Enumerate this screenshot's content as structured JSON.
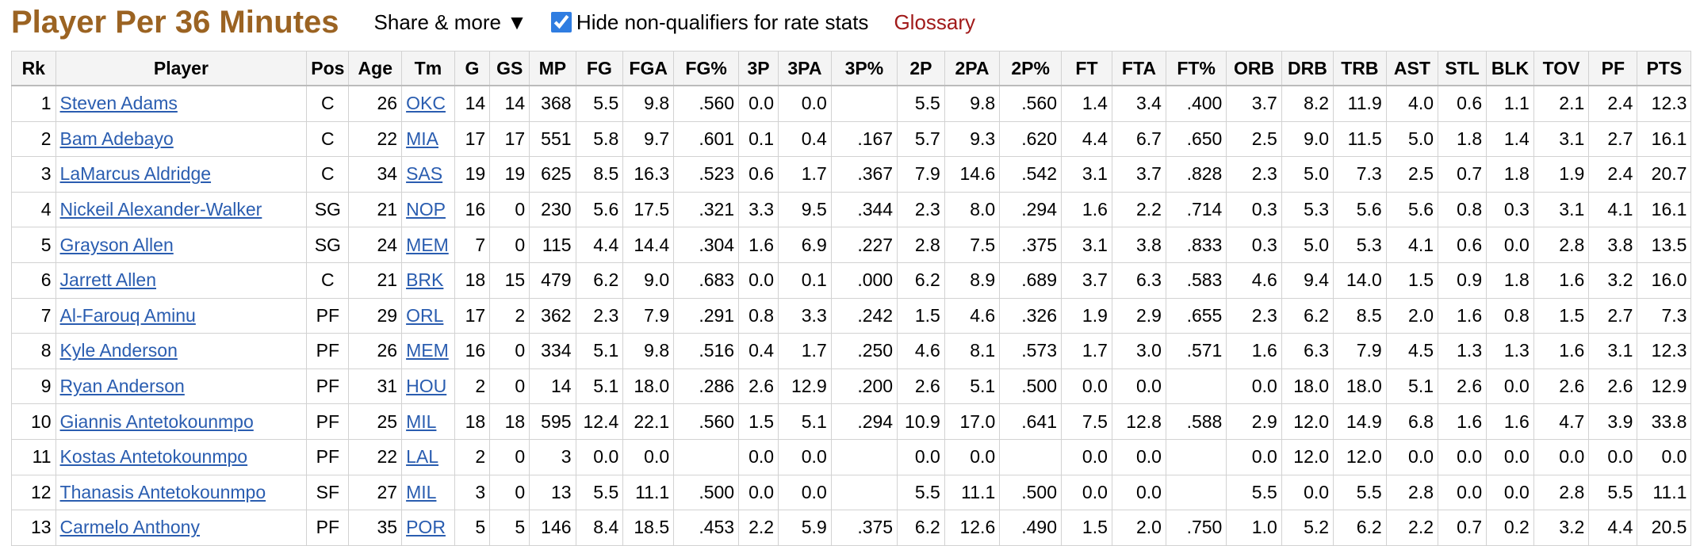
{
  "header": {
    "title": "Player Per 36 Minutes",
    "share": "Share & more ▼",
    "checkbox_label": "Hide non-qualifiers for rate stats",
    "glossary": "Glossary"
  },
  "table": {
    "headers": [
      "Rk",
      "Player",
      "Pos",
      "Age",
      "Tm",
      "G",
      "GS",
      "MP",
      "FG",
      "FGA",
      "FG%",
      "3P",
      "3PA",
      "3P%",
      "2P",
      "2PA",
      "2P%",
      "FT",
      "FTA",
      "FT%",
      "ORB",
      "DRB",
      "TRB",
      "AST",
      "STL",
      "BLK",
      "TOV",
      "PF",
      "PTS"
    ],
    "rows": [
      [
        "1",
        "Steven Adams",
        "C",
        "26",
        "OKC",
        "14",
        "14",
        "368",
        "5.5",
        "9.8",
        ".560",
        "0.0",
        "0.0",
        null,
        "5.5",
        "9.8",
        ".560",
        "1.4",
        "3.4",
        ".400",
        "3.7",
        "8.2",
        "11.9",
        "4.0",
        "0.6",
        "1.1",
        "2.1",
        "2.4",
        "12.3"
      ],
      [
        "2",
        "Bam Adebayo",
        "C",
        "22",
        "MIA",
        "17",
        "17",
        "551",
        "5.8",
        "9.7",
        ".601",
        "0.1",
        "0.4",
        ".167",
        "5.7",
        "9.3",
        ".620",
        "4.4",
        "6.7",
        ".650",
        "2.5",
        "9.0",
        "11.5",
        "5.0",
        "1.8",
        "1.4",
        "3.1",
        "2.7",
        "16.1"
      ],
      [
        "3",
        "LaMarcus Aldridge",
        "C",
        "34",
        "SAS",
        "19",
        "19",
        "625",
        "8.5",
        "16.3",
        ".523",
        "0.6",
        "1.7",
        ".367",
        "7.9",
        "14.6",
        ".542",
        "3.1",
        "3.7",
        ".828",
        "2.3",
        "5.0",
        "7.3",
        "2.5",
        "0.7",
        "1.8",
        "1.9",
        "2.4",
        "20.7"
      ],
      [
        "4",
        "Nickeil Alexander-Walker",
        "SG",
        "21",
        "NOP",
        "16",
        "0",
        "230",
        "5.6",
        "17.5",
        ".321",
        "3.3",
        "9.5",
        ".344",
        "2.3",
        "8.0",
        ".294",
        "1.6",
        "2.2",
        ".714",
        "0.3",
        "5.3",
        "5.6",
        "5.6",
        "0.8",
        "0.3",
        "3.1",
        "4.1",
        "16.1"
      ],
      [
        "5",
        "Grayson Allen",
        "SG",
        "24",
        "MEM",
        "7",
        "0",
        "115",
        "4.4",
        "14.4",
        ".304",
        "1.6",
        "6.9",
        ".227",
        "2.8",
        "7.5",
        ".375",
        "3.1",
        "3.8",
        ".833",
        "0.3",
        "5.0",
        "5.3",
        "4.1",
        "0.6",
        "0.0",
        "2.8",
        "3.8",
        "13.5"
      ],
      [
        "6",
        "Jarrett Allen",
        "C",
        "21",
        "BRK",
        "18",
        "15",
        "479",
        "6.2",
        "9.0",
        ".683",
        "0.0",
        "0.1",
        ".000",
        "6.2",
        "8.9",
        ".689",
        "3.7",
        "6.3",
        ".583",
        "4.6",
        "9.4",
        "14.0",
        "1.5",
        "0.9",
        "1.8",
        "1.6",
        "3.2",
        "16.0"
      ],
      [
        "7",
        "Al-Farouq Aminu",
        "PF",
        "29",
        "ORL",
        "17",
        "2",
        "362",
        "2.3",
        "7.9",
        ".291",
        "0.8",
        "3.3",
        ".242",
        "1.5",
        "4.6",
        ".326",
        "1.9",
        "2.9",
        ".655",
        "2.3",
        "6.2",
        "8.5",
        "2.0",
        "1.6",
        "0.8",
        "1.5",
        "2.7",
        "7.3"
      ],
      [
        "8",
        "Kyle Anderson",
        "PF",
        "26",
        "MEM",
        "16",
        "0",
        "334",
        "5.1",
        "9.8",
        ".516",
        "0.4",
        "1.7",
        ".250",
        "4.6",
        "8.1",
        ".573",
        "1.7",
        "3.0",
        ".571",
        "1.6",
        "6.3",
        "7.9",
        "4.5",
        "1.3",
        "1.3",
        "1.6",
        "3.1",
        "12.3"
      ],
      [
        "9",
        "Ryan Anderson",
        "PF",
        "31",
        "HOU",
        "2",
        "0",
        "14",
        "5.1",
        "18.0",
        ".286",
        "2.6",
        "12.9",
        ".200",
        "2.6",
        "5.1",
        ".500",
        "0.0",
        "0.0",
        null,
        "0.0",
        "18.0",
        "18.0",
        "5.1",
        "2.6",
        "0.0",
        "2.6",
        "2.6",
        "12.9"
      ],
      [
        "10",
        "Giannis Antetokounmpo",
        "PF",
        "25",
        "MIL",
        "18",
        "18",
        "595",
        "12.4",
        "22.1",
        ".560",
        "1.5",
        "5.1",
        ".294",
        "10.9",
        "17.0",
        ".641",
        "7.5",
        "12.8",
        ".588",
        "2.9",
        "12.0",
        "14.9",
        "6.8",
        "1.6",
        "1.6",
        "4.7",
        "3.9",
        "33.8"
      ],
      [
        "11",
        "Kostas Antetokounmpo",
        "PF",
        "22",
        "LAL",
        "2",
        "0",
        "3",
        "0.0",
        "0.0",
        null,
        "0.0",
        "0.0",
        null,
        "0.0",
        "0.0",
        null,
        "0.0",
        "0.0",
        null,
        "0.0",
        "12.0",
        "12.0",
        "0.0",
        "0.0",
        "0.0",
        "0.0",
        "0.0",
        "0.0"
      ],
      [
        "12",
        "Thanasis Antetokounmpo",
        "SF",
        "27",
        "MIL",
        "3",
        "0",
        "13",
        "5.5",
        "11.1",
        ".500",
        "0.0",
        "0.0",
        null,
        "5.5",
        "11.1",
        ".500",
        "0.0",
        "0.0",
        null,
        "5.5",
        "0.0",
        "5.5",
        "2.8",
        "0.0",
        "0.0",
        "2.8",
        "5.5",
        "11.1"
      ],
      [
        "13",
        "Carmelo Anthony",
        "PF",
        "35",
        "POR",
        "5",
        "5",
        "146",
        "8.4",
        "18.5",
        ".453",
        "2.2",
        "5.9",
        ".375",
        "6.2",
        "12.6",
        ".490",
        "1.5",
        "2.0",
        ".750",
        "1.0",
        "5.2",
        "6.2",
        "2.2",
        "0.7",
        "0.2",
        "3.2",
        "4.4",
        "20.5"
      ]
    ]
  }
}
